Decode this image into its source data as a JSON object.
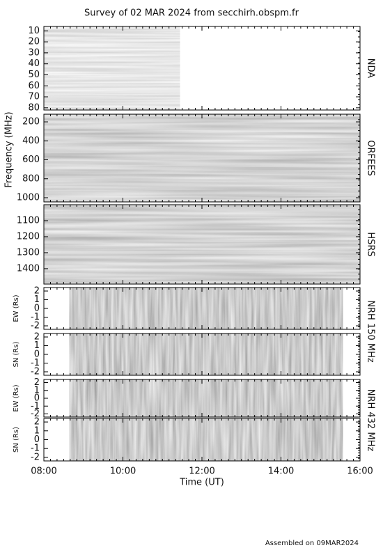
{
  "chart_data": {
    "type": "spectrogram",
    "title": "Survey of 02 MAR 2024 from secchirh.obspm.fr",
    "x_label": "Time (UT)",
    "y_label": "Frequency (MHz)",
    "footer": "Assembled on 09MAR2024",
    "xlim": [
      8,
      16
    ],
    "xticks": [
      {
        "value": 8,
        "label": "08:00"
      },
      {
        "value": 10,
        "label": "10:00"
      },
      {
        "value": 12,
        "label": "12:00"
      },
      {
        "value": 14,
        "label": "14:00"
      },
      {
        "value": 16,
        "label": "16:00"
      }
    ],
    "groups": [
      {
        "label": "NRH 150 MHz"
      },
      {
        "label": "NRH 432 MHz"
      }
    ],
    "panels": [
      {
        "label": "NDA",
        "ylim": [
          82,
          6
        ],
        "yticks": [
          10,
          20,
          30,
          40,
          50,
          60,
          70,
          80
        ],
        "span": [
          8,
          11.44
        ]
      },
      {
        "label": "ORFEES",
        "ylim": [
          1044,
          119
        ],
        "yticks": [
          200,
          400,
          600,
          800,
          1000
        ],
        "span": [
          8,
          16
        ]
      },
      {
        "label": "HSRS",
        "ylim": [
          1496,
          1000
        ],
        "yticks": [
          1100,
          1200,
          1300,
          1400
        ],
        "span": [
          8,
          16
        ]
      },
      {
        "y_label": "EW (Rs)",
        "ylim": [
          -2.4,
          2.4
        ],
        "yticks": [
          -2,
          -1,
          0,
          1,
          2
        ],
        "span": [
          8.65,
          15.56
        ]
      },
      {
        "y_label": "SN (Rs)",
        "ylim": [
          -2.4,
          2.4
        ],
        "yticks": [
          -2,
          -1,
          0,
          1,
          2
        ],
        "span": [
          8.65,
          15.56
        ]
      },
      {
        "y_label": "EW (Rs)",
        "ylim": [
          -2.4,
          2.4
        ],
        "yticks": [
          -2,
          -1,
          0,
          1,
          2
        ],
        "span": [
          8.65,
          15.56
        ]
      },
      {
        "y_label": "SN (Rs)",
        "ylim": [
          -2.4,
          2.4
        ],
        "yticks": [
          -2,
          -1,
          0,
          1,
          2
        ],
        "span": [
          8.65,
          15.56
        ]
      }
    ]
  }
}
